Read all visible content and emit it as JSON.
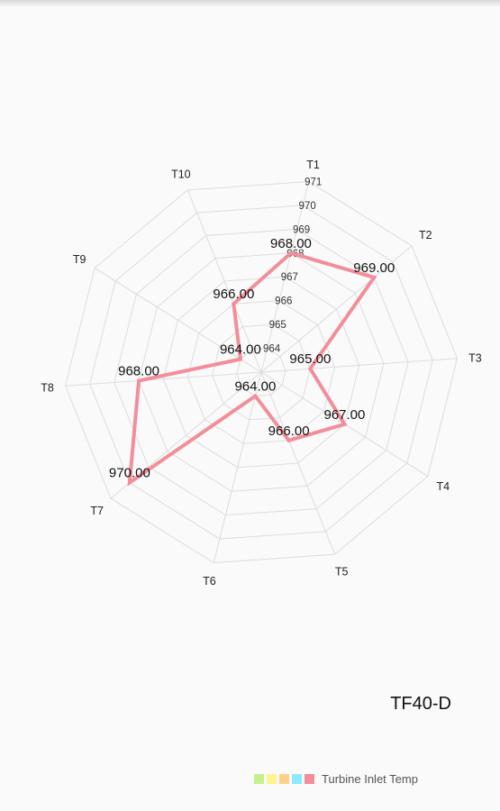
{
  "chart_data": {
    "type": "radar",
    "categories": [
      "T1",
      "T2",
      "T3",
      "T4",
      "T5",
      "T6",
      "T7",
      "T8",
      "T9",
      "T10"
    ],
    "series": [
      {
        "name": "Turbine Inlet Temp",
        "values": [
          968,
          969,
          965,
          967,
          966,
          964,
          970,
          968,
          964,
          966
        ],
        "value_labels": [
          "968.00",
          "969.00",
          "965.00",
          "967.00",
          "966.00",
          "964.00",
          "970.00",
          "968.00",
          "964.00",
          "966.00"
        ],
        "color": "#f28e9a"
      }
    ],
    "rlim": [
      963,
      971
    ],
    "ticks": [
      964,
      965,
      966,
      967,
      968,
      969,
      970,
      971
    ],
    "grid": true,
    "description": "TF40-D",
    "legend": {
      "position": "bottom-right",
      "swatch_colors": [
        "#c6f08c",
        "#fff58c",
        "#ffd08c",
        "#8ceaff",
        "#f28e9a"
      ]
    }
  }
}
